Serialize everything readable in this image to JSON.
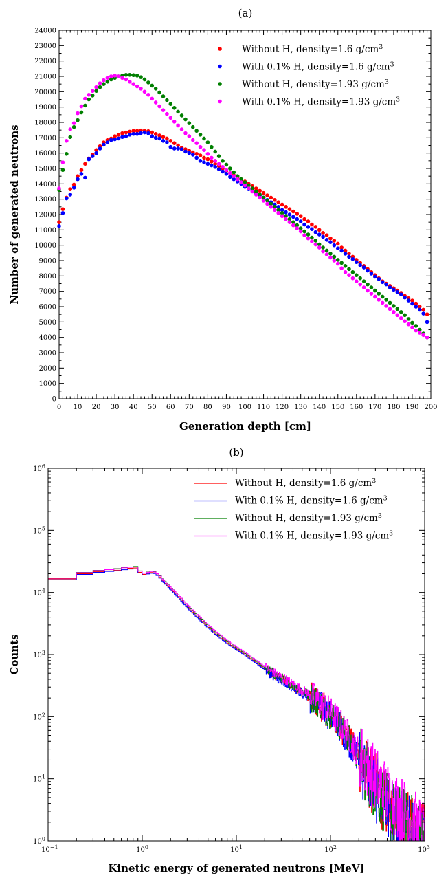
{
  "chart_data": [
    {
      "type": "scatter",
      "panel_label": "(a)",
      "xlabel": "Generation depth [cm]",
      "ylabel": "Number of generated neutrons",
      "xlim": [
        0,
        200
      ],
      "ylim": [
        0,
        24000
      ],
      "x_ticks": [
        0,
        10,
        20,
        30,
        40,
        50,
        60,
        70,
        80,
        90,
        100,
        110,
        120,
        130,
        140,
        150,
        160,
        170,
        180,
        190,
        200
      ],
      "y_ticks": [
        0,
        1000,
        2000,
        3000,
        4000,
        5000,
        6000,
        7000,
        8000,
        9000,
        10000,
        11000,
        12000,
        13000,
        14000,
        15000,
        16000,
        17000,
        18000,
        19000,
        20000,
        21000,
        22000,
        23000,
        24000
      ],
      "grid": false,
      "legend_position": "top-right",
      "x": [
        0,
        2,
        4,
        6,
        8,
        10,
        12,
        14,
        16,
        18,
        20,
        22,
        24,
        26,
        28,
        30,
        32,
        34,
        36,
        38,
        40,
        42,
        44,
        46,
        48,
        50,
        52,
        54,
        56,
        58,
        60,
        62,
        64,
        66,
        68,
        70,
        72,
        74,
        76,
        78,
        80,
        82,
        84,
        86,
        88,
        90,
        92,
        94,
        96,
        98,
        100,
        102,
        104,
        106,
        108,
        110,
        112,
        114,
        116,
        118,
        120,
        122,
        124,
        126,
        128,
        130,
        132,
        134,
        136,
        138,
        140,
        142,
        144,
        146,
        148,
        150,
        152,
        154,
        156,
        158,
        160,
        162,
        164,
        166,
        168,
        170,
        172,
        174,
        176,
        178,
        180,
        182,
        184,
        186,
        188,
        190,
        192,
        194,
        196,
        198
      ],
      "series": [
        {
          "name": "Without H, density=1.6 g/cm³",
          "color": "#ff0000",
          "values": [
            11500,
            12350,
            13100,
            13650,
            13950,
            14500,
            14900,
            15300,
            15650,
            15900,
            16200,
            16450,
            16700,
            16850,
            16950,
            17100,
            17200,
            17300,
            17350,
            17400,
            17450,
            17450,
            17480,
            17460,
            17430,
            17350,
            17250,
            17150,
            17050,
            16950,
            16800,
            16650,
            16500,
            16350,
            16250,
            16150,
            16050,
            15950,
            15850,
            15700,
            15600,
            15450,
            15300,
            15150,
            15000,
            14850,
            14700,
            14550,
            14400,
            14300,
            14150,
            14000,
            13850,
            13700,
            13550,
            13400,
            13250,
            13100,
            12950,
            12800,
            12650,
            12500,
            12350,
            12200,
            12050,
            11900,
            11700,
            11550,
            11350,
            11200,
            11000,
            10800,
            10650,
            10450,
            10300,
            10100,
            9850,
            9650,
            9450,
            9250,
            9050,
            8850,
            8650,
            8450,
            8250,
            8050,
            7850,
            7650,
            7500,
            7350,
            7200,
            7050,
            6900,
            6700,
            6550,
            6400,
            6200,
            6000,
            5800,
            5500
          ]
        },
        {
          "name": "With 0.1% H, density=1.6 g/cm³",
          "color": "#0000ff",
          "values": [
            11250,
            12100,
            13050,
            13300,
            13750,
            14300,
            14650,
            14400,
            15600,
            15800,
            16000,
            16300,
            16550,
            16700,
            16850,
            16900,
            16950,
            17050,
            17100,
            17200,
            17250,
            17250,
            17300,
            17350,
            17300,
            17100,
            17000,
            16950,
            16800,
            16700,
            16400,
            16300,
            16300,
            16250,
            16100,
            16000,
            15900,
            15700,
            15500,
            15400,
            15300,
            15200,
            15100,
            14950,
            14800,
            14650,
            14450,
            14300,
            14150,
            14000,
            13800,
            13650,
            13550,
            13400,
            13250,
            13100,
            12950,
            12800,
            12650,
            12500,
            12300,
            12150,
            12000,
            11850,
            11700,
            11550,
            11350,
            11200,
            11050,
            10850,
            10700,
            10550,
            10350,
            10200,
            10000,
            9800,
            9650,
            9450,
            9250,
            9100,
            8900,
            8700,
            8550,
            8350,
            8150,
            7950,
            7800,
            7600,
            7450,
            7250,
            7100,
            6950,
            6800,
            6600,
            6400,
            6200,
            6000,
            5800,
            5550,
            5000
          ]
        },
        {
          "name": "Without H, density=1.93 g/cm³",
          "color": "#007f00",
          "values": [
            13600,
            14900,
            15950,
            17050,
            17700,
            18150,
            18650,
            19100,
            19500,
            19750,
            20050,
            20300,
            20500,
            20650,
            20800,
            20900,
            21000,
            21050,
            21100,
            21100,
            21080,
            21050,
            20950,
            20800,
            20600,
            20400,
            20200,
            19950,
            19700,
            19450,
            19200,
            18950,
            18700,
            18450,
            18200,
            17950,
            17700,
            17450,
            17200,
            16950,
            16700,
            16400,
            16100,
            15800,
            15500,
            15250,
            15000,
            14750,
            14500,
            14300,
            14100,
            13900,
            13700,
            13500,
            13300,
            13100,
            12900,
            12700,
            12500,
            12300,
            12100,
            11900,
            11700,
            11500,
            11300,
            11100,
            10900,
            10700,
            10500,
            10300,
            10050,
            9850,
            9650,
            9450,
            9250,
            9050,
            8850,
            8650,
            8450,
            8250,
            8050,
            7850,
            7650,
            7450,
            7250,
            7050,
            6850,
            6650,
            6450,
            6250,
            6050,
            5850,
            5650,
            5450,
            5200,
            4950,
            4750,
            4500,
            4250,
            4000
          ]
        },
        {
          "name": "With 0.1% H, density=1.93 g/cm³",
          "color": "#ff00ff",
          "values": [
            13700,
            15400,
            16800,
            17550,
            17950,
            18600,
            19050,
            19550,
            19800,
            20050,
            20300,
            20550,
            20750,
            20900,
            21000,
            21050,
            21000,
            20900,
            20800,
            20650,
            20500,
            20350,
            20200,
            20000,
            19800,
            19550,
            19300,
            19050,
            18800,
            18550,
            18300,
            18050,
            17800,
            17550,
            17300,
            17100,
            16850,
            16650,
            16400,
            16200,
            15950,
            15700,
            15500,
            15300,
            15100,
            14900,
            14700,
            14500,
            14300,
            14100,
            13900,
            13700,
            13500,
            13300,
            13100,
            12900,
            12700,
            12500,
            12300,
            12100,
            11900,
            11700,
            11500,
            11300,
            11100,
            10900,
            10650,
            10450,
            10250,
            10050,
            9850,
            9600,
            9400,
            9200,
            9000,
            8800,
            8500,
            8250,
            8050,
            7850,
            7650,
            7450,
            7250,
            7050,
            6850,
            6650,
            6450,
            6250,
            6050,
            5850,
            5650,
            5450,
            5250,
            5050,
            4850,
            4650,
            4450,
            4300,
            4150,
            4000
          ]
        }
      ]
    },
    {
      "type": "line",
      "panel_label": "(b)",
      "xlabel": "Kinetic energy of generated neutrons [MeV]",
      "ylabel": "Counts",
      "x_scale": "log",
      "y_scale": "log",
      "xlim": [
        0.1,
        1000
      ],
      "ylim": [
        1,
        1000000
      ],
      "x_ticks": [
        0.1,
        1,
        10,
        100,
        1000
      ],
      "y_ticks": [
        1,
        10,
        100,
        1000,
        10000,
        100000,
        1000000
      ],
      "x_tick_exponents": [
        "−1",
        "0",
        "1",
        "2",
        "3"
      ],
      "y_tick_exponents": [
        "0",
        "1",
        "2",
        "3",
        "4",
        "5",
        "6"
      ],
      "grid": false,
      "legend_position": "top-right",
      "x": [
        0.1,
        0.2,
        0.3,
        0.4,
        0.5,
        0.6,
        0.7,
        0.8,
        0.9,
        1.0,
        1.1,
        1.2,
        1.3,
        1.4,
        1.5,
        1.7,
        2,
        2.5,
        3,
        4,
        5,
        6,
        7,
        8,
        10,
        12,
        15,
        20,
        25,
        30,
        40,
        50,
        60,
        70,
        80,
        100,
        120,
        150,
        200,
        250,
        300,
        350,
        400,
        500,
        600,
        700,
        800,
        900,
        1000
      ],
      "series": [
        {
          "name": "Without H, density=1.6 g/cm³",
          "color": "#ff0000",
          "values": [
            16500,
            20000,
            21500,
            22200,
            22800,
            23800,
            24500,
            24800,
            21000,
            19500,
            20300,
            20900,
            20600,
            19200,
            17500,
            14800,
            11500,
            8100,
            5900,
            3850,
            2800,
            2180,
            1820,
            1560,
            1240,
            1040,
            820,
            590,
            470,
            400,
            310,
            250,
            210,
            175,
            148,
            108,
            80,
            48,
            22,
            12,
            7.5,
            5.2,
            3.5,
            2.2,
            2.0,
            1.6,
            1.3,
            1.2,
            1.1
          ]
        },
        {
          "name": "With 0.1% H, density=1.6 g/cm³",
          "color": "#0000ff",
          "values": [
            16000,
            19500,
            21000,
            21800,
            22300,
            23200,
            23800,
            24000,
            20500,
            19000,
            19800,
            20300,
            20100,
            18700,
            17000,
            14400,
            11100,
            7800,
            5700,
            3700,
            2700,
            2100,
            1750,
            1500,
            1200,
            1000,
            790,
            570,
            455,
            390,
            300,
            240,
            200,
            168,
            142,
            104,
            77,
            46,
            21,
            11,
            7.0,
            4.8,
            3.2,
            2.1,
            1.9,
            1.5,
            1.3,
            1.2,
            1.1
          ]
        },
        {
          "name": "Without H, density=1.93 g/cm³",
          "color": "#007f00",
          "values": [
            17000,
            21000,
            22700,
            23500,
            24200,
            25200,
            25800,
            26200,
            22200,
            20500,
            21300,
            21900,
            21600,
            20200,
            18500,
            15800,
            12300,
            8700,
            6300,
            4100,
            2950,
            2300,
            1920,
            1640,
            1300,
            1090,
            860,
            620,
            495,
            420,
            325,
            262,
            220,
            182,
            154,
            112,
            83,
            50,
            23,
            12.5,
            7.8,
            5.4,
            3.6,
            2.3,
            2.1,
            1.7,
            1.4,
            1.2,
            1.1
          ]
        },
        {
          "name": "With 0.1% H, density=1.93 g/cm³",
          "color": "#ff00ff",
          "values": [
            17000,
            20800,
            22500,
            23300,
            24000,
            25000,
            25500,
            25800,
            22000,
            20300,
            21100,
            21700,
            21400,
            20000,
            18300,
            15600,
            12200,
            8700,
            6400,
            4200,
            3050,
            2380,
            1990,
            1700,
            1350,
            1130,
            890,
            640,
            510,
            435,
            335,
            270,
            228,
            190,
            160,
            118,
            88,
            54,
            26,
            15,
            10,
            7.5,
            5.6,
            3.8,
            3.0,
            2.4,
            1.8,
            1.5,
            1.3
          ]
        }
      ]
    }
  ]
}
